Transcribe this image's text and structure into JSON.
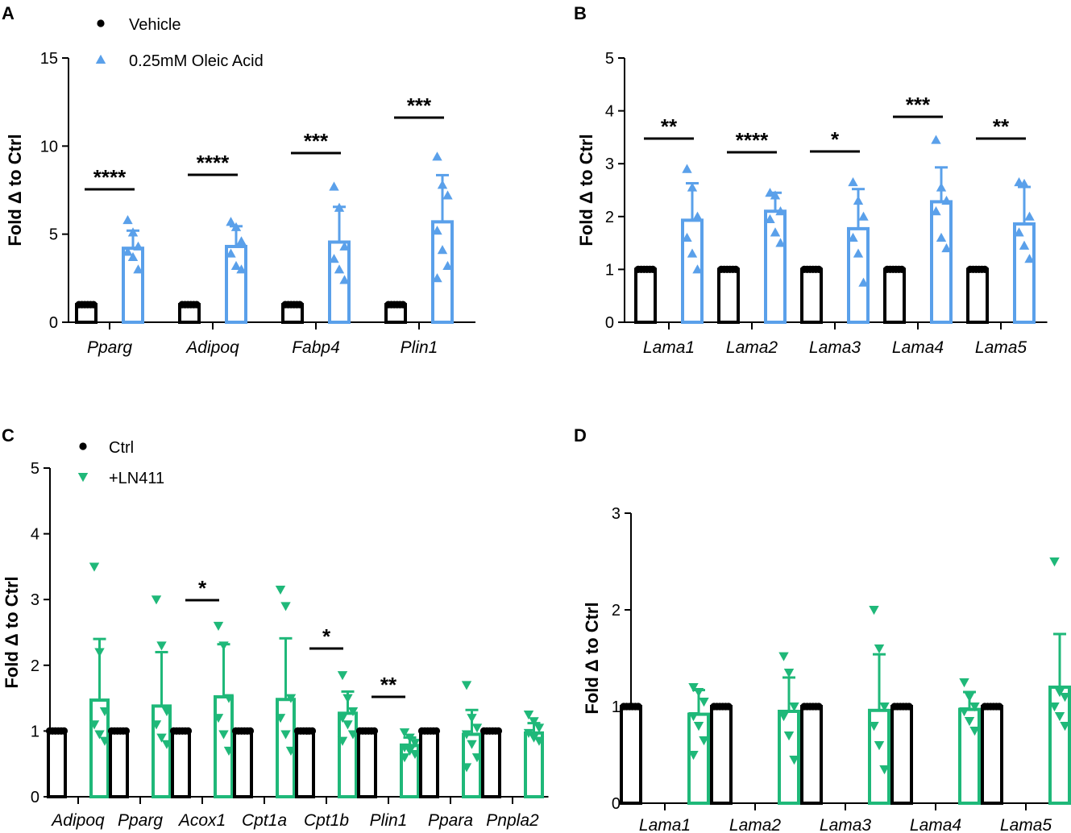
{
  "chart_data": [
    {
      "panel": "A",
      "type": "bar",
      "ylabel": "Fold Δ to Ctrl",
      "ylim": [
        0,
        15
      ],
      "yticks": [
        "0",
        "5",
        "10",
        "15"
      ],
      "categories": [
        "Pparg",
        "Adipoq",
        "Fabp4",
        "Plin1"
      ],
      "legend": [
        "Vehicle",
        "0.25mM Oleic Acid"
      ],
      "series": [
        {
          "name": "Vehicle",
          "color": "#000000",
          "marker": "circle",
          "values": [
            1,
            1,
            1,
            1
          ],
          "errors": [
            0,
            0,
            0,
            0
          ],
          "points": [
            [
              1,
              1,
              1,
              1,
              1,
              1
            ],
            [
              1,
              1,
              1,
              1,
              1,
              1
            ],
            [
              1,
              1,
              1,
              1,
              1,
              1
            ],
            [
              1,
              1,
              1,
              1,
              1,
              1
            ]
          ]
        },
        {
          "name": "0.25mM Oleic Acid",
          "color": "#5aa0ea",
          "marker": "triangle-up",
          "values": [
            4.2,
            4.3,
            4.55,
            5.7
          ],
          "errors": [
            1.0,
            1.15,
            2.0,
            2.65
          ],
          "points": [
            [
              5.8,
              5.1,
              4.3,
              4.0,
              3.7,
              3.0
            ],
            [
              5.7,
              5.4,
              4.6,
              3.9,
              3.2,
              3.0
            ],
            [
              7.7,
              6.5,
              4.3,
              3.6,
              3.0,
              2.4
            ],
            [
              9.4,
              7.8,
              7.2,
              5.2,
              4.1,
              3.2,
              2.5
            ]
          ]
        }
      ],
      "significance": [
        "****",
        "****",
        "***",
        "***"
      ]
    },
    {
      "panel": "B",
      "type": "bar",
      "ylabel": "Fold Δ to Ctrl",
      "ylim": [
        0,
        5
      ],
      "yticks": [
        "0",
        "1",
        "2",
        "3",
        "4",
        "5"
      ],
      "categories": [
        "Lama1",
        "Lama2",
        "Lama3",
        "Lama4",
        "Lama5"
      ],
      "series": [
        {
          "name": "Vehicle",
          "color": "#000000",
          "marker": "circle",
          "values": [
            1,
            1,
            1,
            1,
            1
          ],
          "errors": [
            0,
            0,
            0,
            0,
            0
          ],
          "points": [
            [
              1,
              1,
              1,
              1,
              1,
              1
            ],
            [
              1,
              1,
              1,
              1,
              1,
              1
            ],
            [
              1,
              1,
              1,
              1,
              1,
              1
            ],
            [
              1,
              1,
              1,
              1,
              1,
              1
            ],
            [
              1,
              1,
              1,
              1,
              1,
              1
            ]
          ]
        },
        {
          "name": "0.25mM Oleic Acid",
          "color": "#5aa0ea",
          "marker": "triangle-up",
          "values": [
            1.93,
            2.1,
            1.77,
            2.28,
            1.86
          ],
          "errors": [
            0.7,
            0.35,
            0.75,
            0.65,
            0.7
          ],
          "points": [
            [
              2.9,
              2.55,
              2.0,
              1.6,
              1.3,
              1.0
            ],
            [
              2.45,
              2.4,
              2.1,
              1.95,
              1.7,
              1.5
            ],
            [
              2.65,
              2.3,
              2.0,
              1.6,
              1.3,
              0.75
            ],
            [
              3.45,
              2.55,
              2.3,
              2.1,
              1.6,
              1.4
            ],
            [
              2.65,
              2.62,
              2.0,
              1.7,
              1.45,
              1.2
            ]
          ]
        }
      ],
      "significance": [
        "**",
        "****",
        "*",
        "***",
        "**"
      ]
    },
    {
      "panel": "C",
      "type": "bar",
      "ylabel": "Fold Δ to Ctrl",
      "ylim": [
        0,
        5
      ],
      "yticks": [
        "0",
        "1",
        "2",
        "3",
        "4",
        "5"
      ],
      "categories": [
        "Adipoq",
        "Pparg",
        "Acox1",
        "Cpt1a",
        "Cpt1b",
        "Plin1",
        "Ppara",
        "Pnpla2"
      ],
      "legend": [
        "Ctrl",
        "+LN411"
      ],
      "series": [
        {
          "name": "Ctrl",
          "color": "#000000",
          "marker": "circle",
          "values": [
            1,
            1,
            1,
            1,
            1,
            1,
            1,
            1
          ],
          "errors": [
            0,
            0,
            0,
            0,
            0,
            0,
            0,
            0
          ],
          "points": [
            [
              1,
              1,
              1,
              1,
              1,
              1
            ],
            [
              1,
              1,
              1,
              1,
              1,
              1
            ],
            [
              1,
              1,
              1,
              1,
              1,
              1
            ],
            [
              1,
              1,
              1,
              1,
              1,
              1
            ],
            [
              1,
              1,
              1,
              1,
              1,
              1
            ],
            [
              1,
              1,
              1,
              1,
              1,
              1
            ],
            [
              1,
              1,
              1,
              1,
              1,
              1
            ],
            [
              1,
              1,
              1,
              1,
              1,
              1
            ]
          ]
        },
        {
          "name": "+LN411",
          "color": "#1fb879",
          "marker": "triangle-down",
          "values": [
            1.47,
            1.38,
            1.52,
            1.48,
            1.27,
            0.78,
            0.95,
            0.97
          ],
          "errors": [
            0.93,
            0.82,
            0.8,
            0.93,
            0.33,
            0.12,
            0.37,
            0.15
          ],
          "points": [
            [
              3.5,
              2.2,
              1.3,
              1.1,
              0.95,
              0.85
            ],
            [
              3.0,
              2.3,
              1.3,
              1.1,
              0.9,
              0.8
            ],
            [
              2.6,
              2.3,
              1.5,
              1.2,
              0.95,
              0.7
            ],
            [
              3.15,
              2.9,
              1.5,
              1.2,
              0.95,
              0.7
            ],
            [
              1.85,
              1.5,
              1.3,
              1.2,
              1.1,
              0.95,
              0.85
            ],
            [
              0.98,
              0.9,
              0.82,
              0.75,
              0.7,
              0.65,
              0.6
            ],
            [
              1.7,
              1.2,
              1.05,
              0.95,
              0.8,
              0.6,
              0.45
            ],
            [
              1.25,
              1.15,
              1.05,
              0.97,
              0.9,
              0.85
            ]
          ]
        }
      ],
      "significance": [
        "",
        "",
        "*",
        "",
        "*",
        "**",
        "",
        ""
      ]
    },
    {
      "panel": "D",
      "type": "bar",
      "ylabel": "Fold Δ to Ctrl",
      "ylim": [
        0,
        3
      ],
      "yticks": [
        "0",
        "1",
        "2",
        "3"
      ],
      "categories": [
        "Lama1",
        "Lama2",
        "Lama3",
        "Lama4",
        "Lama5"
      ],
      "series": [
        {
          "name": "Ctrl",
          "color": "#000000",
          "marker": "circle",
          "values": [
            1,
            1,
            1,
            1,
            1
          ],
          "errors": [
            0,
            0,
            0,
            0,
            0
          ],
          "points": [
            [
              1,
              1,
              1,
              1,
              1,
              1
            ],
            [
              1,
              1,
              1,
              1,
              1,
              1
            ],
            [
              1,
              1,
              1,
              1,
              1,
              1
            ],
            [
              1,
              1,
              1,
              1,
              1,
              1
            ],
            [
              1,
              1,
              1,
              1,
              1,
              1
            ]
          ]
        },
        {
          "name": "+LN411",
          "color": "#1fb879",
          "marker": "triangle-down",
          "values": [
            0.92,
            0.95,
            0.96,
            0.97,
            1.2
          ],
          "errors": [
            0.25,
            0.35,
            0.58,
            0.18,
            0.55
          ],
          "points": [
            [
              1.2,
              1.15,
              1.05,
              0.9,
              0.8,
              0.65,
              0.5
            ],
            [
              1.52,
              1.35,
              1.0,
              0.9,
              0.7,
              0.45
            ],
            [
              2.0,
              1.6,
              1.0,
              0.8,
              0.6,
              0.35
            ],
            [
              1.25,
              1.1,
              1.0,
              0.95,
              0.85,
              0.75
            ],
            [
              2.5,
              1.15,
              1.1,
              1.0,
              0.9,
              0.8
            ]
          ]
        }
      ],
      "significance": [
        "",
        "",
        "",
        "",
        ""
      ]
    }
  ]
}
